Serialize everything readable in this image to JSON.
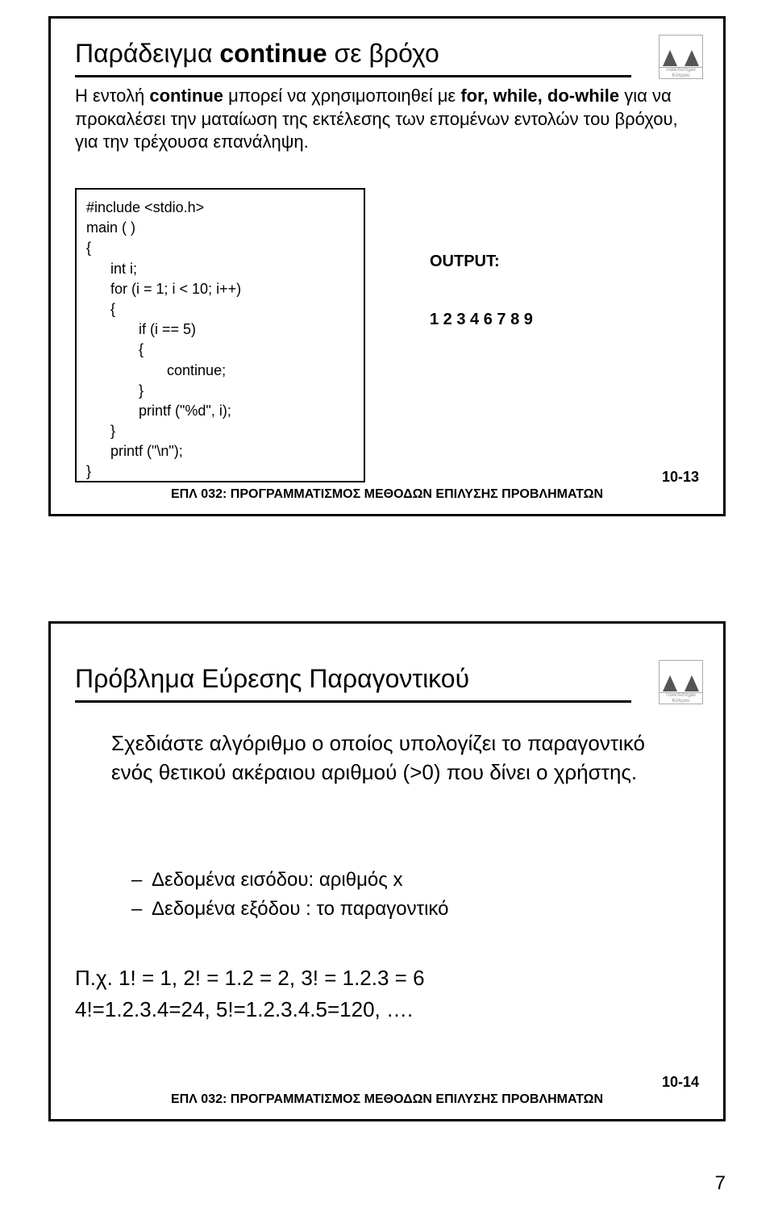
{
  "page_number": "7",
  "footer_text": "ΕΠΛ 032: ΠΡΟΓΡΑΜΜΑΤΙΣΜΟΣ ΜΕΘΟΔΩΝ ΕΠΙΛΥΣΗΣ ΠΡΟΒΛΗΜΑΤΩΝ",
  "slide1": {
    "number": "10-13",
    "title_pre": "Παράδειγμα ",
    "title_bold": "continue",
    "title_post": " σε βρόχο",
    "body_pre": "Η εντολή ",
    "body_b1": "continue",
    "body_mid1": " μπορεί να χρησιμοποιηθεί με ",
    "body_b2": "for, while, do-while",
    "body_mid2": " για να προκαλέσει την ματαίωση της εκτέλεσης των επομένων εντολών του βρόχου, για την τρέχουσα επανάληψη.",
    "code": "#include <stdio.h>\nmain ( )\n{\n      int i;\n      for (i = 1; i < 10; i++)\n      {\n             if (i == 5)\n             {\n                    continue;\n             }\n             printf (\"%d\", i);\n      }\n      printf (\"\\n\");\n}",
    "output_label": "OUTPUT:",
    "output_values": "1 2 3 4 6 7 8 9"
  },
  "slide2": {
    "number": "10-14",
    "title": "Πρόβλημα Εύρεσης Παραγοντικού",
    "para": "Σχεδιάστε αλγόριθμο ο οποίος υπολογίζει το παραγοντικό ενός θετικού ακέραιου αριθμού (>0) που δίνει ο χρήστης.",
    "bullet1": "Δεδομένα εισόδου: αριθμός x",
    "bullet2": "Δεδομένα εξόδου : το παραγοντικό",
    "example_line1": "Π.χ. 1! = 1,      2! = 1.2 = 2,     3! = 1.2.3 = 6",
    "example_line2": "4!=1.2.3.4=24,   5!=1.2.3.4.5=120, …."
  }
}
